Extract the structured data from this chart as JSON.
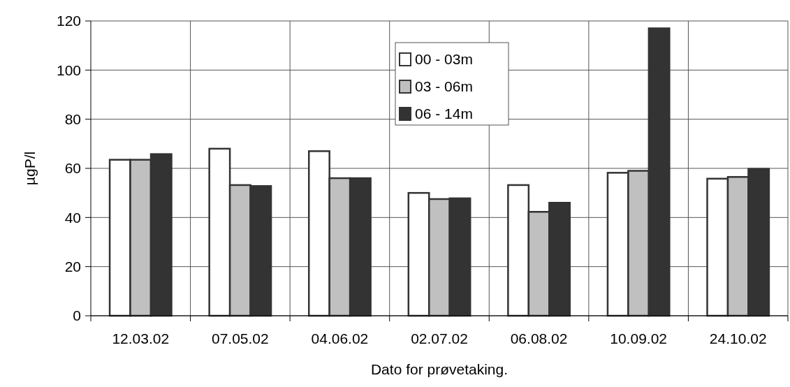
{
  "chart_data": {
    "type": "bar",
    "xlabel": "Dato for prøvetaking.",
    "ylabel": "µgP/l",
    "categories": [
      "12.03.02",
      "07.05.02",
      "04.06.02",
      "02.07.02",
      "06.08.02",
      "10.09.02",
      "24.10.02"
    ],
    "series": [
      {
        "name": "00 - 03m",
        "color": "#ffffff",
        "values": [
          63.5,
          68,
          67,
          50,
          53.2,
          58.2,
          55.8
        ]
      },
      {
        "name": "03 - 06m",
        "color": "#c0c0c0",
        "values": [
          63.5,
          53.2,
          56,
          47.5,
          42.3,
          59,
          56.5
        ]
      },
      {
        "name": "06 - 14m",
        "color": "#333333",
        "values": [
          65.8,
          52.8,
          56,
          47.8,
          46,
          117,
          59.8
        ]
      }
    ],
    "ylim": [
      0,
      120
    ],
    "yticks": [
      0,
      20,
      40,
      60,
      80,
      100,
      120
    ],
    "grid": true,
    "legend": "top"
  }
}
